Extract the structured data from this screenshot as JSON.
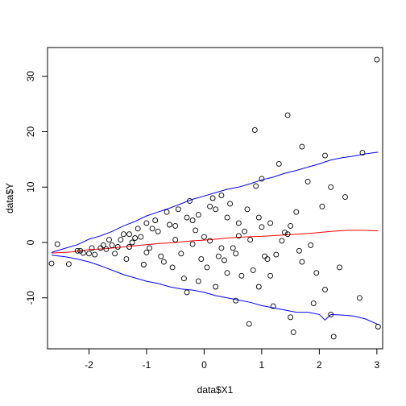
{
  "chart_data": {
    "type": "scatter",
    "title": "",
    "xlabel": "data$X1",
    "ylabel": "data$Y",
    "xlim": [
      -2.72,
      3.1
    ],
    "ylim": [
      -19.2,
      35.2
    ],
    "x_ticks": [
      "-2",
      "-1",
      "0",
      "1",
      "2",
      "3"
    ],
    "x_tick_values": [
      -2,
      -1,
      0,
      1,
      2,
      3
    ],
    "y_ticks": [
      "-10",
      "0",
      "10",
      "20",
      "30"
    ],
    "y_tick_values": [
      -10,
      0,
      10,
      20,
      30
    ],
    "grid": false,
    "legend": "none",
    "colors": {
      "points": "#000000",
      "mean_line": "#ff0000",
      "band_lines": "#0000ff",
      "frame": "#000000"
    },
    "series": [
      {
        "kind": "points",
        "x": [
          3.0,
          1.45,
          0.88,
          1.7,
          2.1,
          2.75,
          1.3,
          1.0,
          0.9,
          1.8,
          2.2,
          2.45,
          2.7,
          3.02,
          2.25,
          2.2,
          1.9,
          1.55,
          1.5,
          1.2,
          0.78,
          0.55,
          2.1,
          2.35,
          2.05,
          1.6,
          1.5,
          1.45,
          1.1,
          1.95,
          1.7,
          1.15,
          0.95,
          0.3,
          0.2,
          -0.1,
          -0.3,
          -0.5,
          -0.8,
          -1.0,
          -1.1,
          -1.3,
          -1.45,
          -1.6,
          -1.8,
          -2.0,
          -2.2,
          -2.55,
          -2.65,
          -2.35,
          -2.1,
          -1.9,
          -1.7,
          -1.5,
          -1.2,
          -0.9,
          -0.6,
          -0.2,
          0.1,
          0.4,
          0.6,
          0.7,
          0.5,
          0.25,
          -0.05,
          -0.4,
          -0.7,
          -1.05,
          -1.35,
          -1.55,
          -1.95,
          -2.15,
          -0.15,
          0.05,
          0.35,
          0.65,
          0.85,
          1.05,
          1.25,
          1.35,
          1.65,
          1.85,
          -0.35,
          -0.55,
          -0.75,
          -0.95,
          -1.25,
          -1.4,
          -1.65,
          -1.75,
          -0.45,
          -0.25,
          0.15,
          0.45,
          0.75,
          0.95,
          1.15,
          -1.15,
          -0.85,
          -0.65,
          0.0,
          0.3,
          0.55,
          0.8,
          -0.2,
          -0.5,
          -1.0,
          -1.3,
          0.1,
          0.6,
          1.0,
          1.4,
          -0.1,
          0.2,
          0.4,
          -0.3
        ],
        "y": [
          33.0,
          23.0,
          20.3,
          17.3,
          15.7,
          16.2,
          14.2,
          11.5,
          10.2,
          11.0,
          10.0,
          8.2,
          -10.0,
          -15.2,
          -17.0,
          -13.0,
          -11.0,
          -16.2,
          -13.5,
          -11.5,
          -14.7,
          -10.5,
          -8.5,
          -4.5,
          6.5,
          5.5,
          3.0,
          1.5,
          -3.0,
          -5.5,
          -3.5,
          -6.0,
          -8.0,
          8.5,
          6.0,
          5.0,
          4.5,
          3.0,
          2.0,
          3.5,
          1.0,
          1.5,
          0.5,
          -0.5,
          -1.0,
          -2.0,
          -1.5,
          -0.3,
          -3.8,
          -3.9,
          -1.9,
          -2.2,
          -1.2,
          -0.8,
          0.8,
          2.5,
          3.2,
          4.0,
          6.5,
          4.5,
          3.5,
          2.0,
          -1.0,
          -2.5,
          -3.0,
          -2.0,
          -3.5,
          -4.0,
          -3.0,
          -2.0,
          -1.0,
          -1.5,
          2.2,
          -4.5,
          -3.2,
          -6.0,
          -5.0,
          -2.5,
          -2.2,
          0.3,
          -1.5,
          -0.5,
          -6.5,
          -4.5,
          -2.5,
          -1.0,
          0.0,
          1.5,
          0.5,
          -0.5,
          6.0,
          7.5,
          8.0,
          7.0,
          6.0,
          4.5,
          3.5,
          2.5,
          4.0,
          5.5,
          1.0,
          -1.0,
          -2.0,
          0.5,
          -0.3,
          0.5,
          -1.8,
          -0.8,
          0.3,
          1.2,
          2.8,
          1.8,
          -7.0,
          -8.0,
          -5.5,
          -9.0
        ]
      },
      {
        "kind": "line",
        "role": "mean",
        "x": [
          -2.65,
          -2.3,
          -2.0,
          -1.7,
          -1.4,
          -1.1,
          -0.8,
          -0.5,
          -0.2,
          0.1,
          0.4,
          0.7,
          1.0,
          1.3,
          1.6,
          1.9,
          2.2,
          2.5,
          2.8,
          3.02
        ],
        "y": [
          -1.9,
          -1.7,
          -1.3,
          -1.1,
          -0.8,
          -0.5,
          -0.2,
          0.0,
          0.3,
          0.5,
          0.8,
          1.0,
          1.1,
          1.3,
          1.5,
          1.7,
          2.0,
          2.2,
          2.2,
          2.1
        ]
      },
      {
        "kind": "line",
        "role": "upper",
        "x": [
          -2.65,
          -2.4,
          -2.2,
          -2.0,
          -1.8,
          -1.6,
          -1.4,
          -1.2,
          -1.0,
          -0.8,
          -0.6,
          -0.4,
          -0.2,
          0.0,
          0.2,
          0.4,
          0.6,
          0.8,
          1.0,
          1.2,
          1.4,
          1.6,
          1.8,
          2.0,
          2.2,
          2.4,
          2.6,
          2.8,
          3.02
        ],
        "y": [
          -1.8,
          -1.0,
          -0.4,
          0.6,
          1.2,
          2.0,
          3.0,
          3.8,
          4.8,
          5.5,
          6.2,
          7.0,
          7.8,
          8.4,
          9.0,
          9.6,
          10.0,
          10.6,
          11.3,
          11.8,
          12.5,
          13.0,
          13.6,
          14.2,
          14.9,
          15.3,
          15.6,
          16.0,
          16.3
        ]
      },
      {
        "kind": "line",
        "role": "lower",
        "x": [
          -2.65,
          -2.4,
          -2.2,
          -2.0,
          -1.8,
          -1.6,
          -1.4,
          -1.2,
          -1.0,
          -0.8,
          -0.6,
          -0.4,
          -0.2,
          0.0,
          0.2,
          0.4,
          0.6,
          0.8,
          1.0,
          1.2,
          1.4,
          1.6,
          1.8,
          2.0,
          2.1,
          2.2,
          2.4,
          2.6,
          2.8,
          3.02
        ],
        "y": [
          -2.3,
          -2.6,
          -3.0,
          -3.5,
          -4.2,
          -5.0,
          -5.8,
          -6.4,
          -7.0,
          -7.4,
          -8.0,
          -8.4,
          -8.6,
          -9.0,
          -9.6,
          -10.0,
          -10.4,
          -10.8,
          -11.4,
          -11.8,
          -12.2,
          -12.6,
          -12.6,
          -13.0,
          -14.0,
          -13.0,
          -13.1,
          -13.3,
          -13.8,
          -14.8
        ]
      }
    ]
  }
}
